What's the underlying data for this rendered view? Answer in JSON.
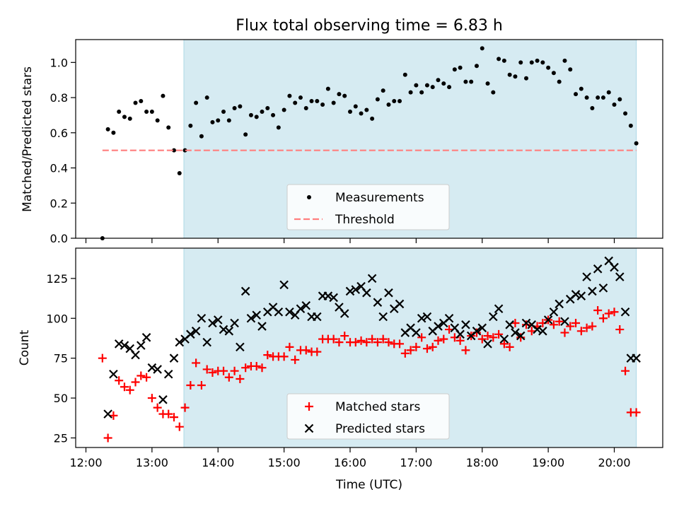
{
  "chart_data": [
    {
      "type": "scatter",
      "title": "Flux total observing time = 6.83 h",
      "xlabel": "",
      "ylabel": "Matched/Predicted stars",
      "ylim": [
        0,
        1.13
      ],
      "yticks": [
        "0.0",
        "0.2",
        "0.4",
        "0.6",
        "0.8",
        "1.0"
      ],
      "shaded_span": [
        "13:29",
        "20:20"
      ],
      "shade_color": "#add8e6",
      "legend": {
        "placement": "bottom-center",
        "entries": [
          "Measurements",
          "Threshold"
        ]
      },
      "series": [
        {
          "name": "Measurements",
          "color": "#000000",
          "marker": "dot",
          "x": [
            "12:15",
            "12:20",
            "12:25",
            "12:30",
            "12:35",
            "12:40",
            "12:45",
            "12:50",
            "12:55",
            "13:00",
            "13:05",
            "13:10",
            "13:15",
            "13:20",
            "13:25",
            "13:30",
            "13:35",
            "13:40",
            "13:45",
            "13:50",
            "13:55",
            "14:00",
            "14:05",
            "14:10",
            "14:15",
            "14:20",
            "14:25",
            "14:30",
            "14:35",
            "14:40",
            "14:45",
            "14:50",
            "14:55",
            "15:00",
            "15:05",
            "15:10",
            "15:15",
            "15:20",
            "15:25",
            "15:30",
            "15:35",
            "15:40",
            "15:45",
            "15:50",
            "15:55",
            "16:00",
            "16:05",
            "16:10",
            "16:15",
            "16:20",
            "16:25",
            "16:30",
            "16:35",
            "16:40",
            "16:45",
            "16:50",
            "16:55",
            "17:00",
            "17:05",
            "17:10",
            "17:15",
            "17:20",
            "17:25",
            "17:30",
            "17:35",
            "17:40",
            "17:45",
            "17:50",
            "17:55",
            "18:00",
            "18:05",
            "18:10",
            "18:15",
            "18:20",
            "18:25",
            "18:30",
            "18:35",
            "18:40",
            "18:45",
            "18:50",
            "18:55",
            "19:00",
            "19:05",
            "19:10",
            "19:15",
            "19:20",
            "19:25",
            "19:30",
            "19:35",
            "19:40",
            "19:45",
            "19:50",
            "19:55",
            "20:00",
            "20:05",
            "20:10",
            "20:15",
            "20:20"
          ],
          "y": [
            0.0,
            0.62,
            0.6,
            0.72,
            0.69,
            0.68,
            0.77,
            0.78,
            0.72,
            0.72,
            0.67,
            0.81,
            0.63,
            0.5,
            0.37,
            0.5,
            0.64,
            0.77,
            0.58,
            0.8,
            0.66,
            0.67,
            0.72,
            0.67,
            0.74,
            0.75,
            0.59,
            0.7,
            0.69,
            0.72,
            0.74,
            0.7,
            0.63,
            0.73,
            0.81,
            0.77,
            0.8,
            0.74,
            0.78,
            0.78,
            0.76,
            0.85,
            0.77,
            0.82,
            0.81,
            0.72,
            0.75,
            0.71,
            0.73,
            0.68,
            0.79,
            0.84,
            0.76,
            0.78,
            0.78,
            0.93,
            0.83,
            0.87,
            0.83,
            0.87,
            0.86,
            0.9,
            0.88,
            0.86,
            0.96,
            0.97,
            0.89,
            0.89,
            0.98,
            1.08,
            0.88,
            0.83,
            1.02,
            1.01,
            0.93,
            0.92,
            1.0,
            0.91,
            1.0,
            1.01,
            1.0,
            0.97,
            0.94,
            0.89,
            1.01,
            0.96,
            0.82,
            0.85,
            0.8,
            0.74,
            0.8,
            0.8,
            0.83,
            0.76,
            0.79,
            0.71,
            0.64,
            0.54
          ]
        },
        {
          "name": "Threshold",
          "color": "#ff7f7f",
          "style": "dashed",
          "x": [
            "12:15",
            "20:20"
          ],
          "y": [
            0.5,
            0.5
          ]
        }
      ]
    },
    {
      "type": "scatter",
      "title": "",
      "xlabel": "Time (UTC)",
      "ylabel": "Count",
      "ylim": [
        19,
        144
      ],
      "xticks": [
        "12:00",
        "13:00",
        "14:00",
        "15:00",
        "16:00",
        "17:00",
        "18:00",
        "19:00",
        "20:00"
      ],
      "yticks": [
        "25",
        "50",
        "75",
        "100",
        "125"
      ],
      "shaded_span": [
        "13:29",
        "20:20"
      ],
      "shade_color": "#add8e6",
      "legend": {
        "placement": "bottom-center",
        "entries": [
          "Matched stars",
          "Predicted stars"
        ]
      },
      "series": [
        {
          "name": "Matched stars",
          "color": "#ff0000",
          "marker": "plus",
          "x": [
            "12:15",
            "12:20",
            "12:25",
            "12:30",
            "12:35",
            "12:40",
            "12:45",
            "12:50",
            "12:55",
            "13:00",
            "13:05",
            "13:10",
            "13:15",
            "13:20",
            "13:25",
            "13:30",
            "13:35",
            "13:40",
            "13:45",
            "13:50",
            "13:55",
            "14:00",
            "14:05",
            "14:10",
            "14:15",
            "14:20",
            "14:25",
            "14:30",
            "14:35",
            "14:40",
            "14:45",
            "14:50",
            "14:55",
            "15:00",
            "15:05",
            "15:10",
            "15:15",
            "15:20",
            "15:25",
            "15:30",
            "15:35",
            "15:40",
            "15:45",
            "15:50",
            "15:55",
            "16:00",
            "16:05",
            "16:10",
            "16:15",
            "16:20",
            "16:25",
            "16:30",
            "16:35",
            "16:40",
            "16:45",
            "16:50",
            "16:55",
            "17:00",
            "17:05",
            "17:10",
            "17:15",
            "17:20",
            "17:25",
            "17:30",
            "17:35",
            "17:40",
            "17:45",
            "17:50",
            "17:55",
            "18:00",
            "18:05",
            "18:10",
            "18:15",
            "18:20",
            "18:25",
            "18:30",
            "18:35",
            "18:40",
            "18:45",
            "18:50",
            "18:55",
            "19:00",
            "19:05",
            "19:10",
            "19:15",
            "19:20",
            "19:25",
            "19:30",
            "19:35",
            "19:40",
            "19:45",
            "19:50",
            "19:55",
            "20:00",
            "20:05",
            "20:10",
            "20:15",
            "20:20"
          ],
          "y": [
            75,
            25,
            39,
            61,
            57,
            55,
            60,
            64,
            63,
            50,
            44,
            40,
            40,
            38,
            32,
            44,
            58,
            72,
            58,
            68,
            66,
            67,
            67,
            63,
            67,
            62,
            69,
            70,
            70,
            69,
            77,
            76,
            76,
            76,
            82,
            74,
            80,
            80,
            79,
            79,
            87,
            87,
            87,
            85,
            89,
            85,
            85,
            86,
            85,
            87,
            85,
            87,
            85,
            84,
            84,
            78,
            80,
            82,
            88,
            81,
            82,
            86,
            87,
            93,
            88,
            86,
            80,
            89,
            91,
            87,
            89,
            88,
            90,
            84,
            82,
            97,
            88,
            96,
            92,
            95,
            97,
            99,
            96,
            98,
            91,
            95,
            97,
            92,
            94,
            95,
            105,
            100,
            103,
            104,
            93,
            67,
            41,
            41
          ]
        },
        {
          "name": "Predicted stars",
          "color": "#000000",
          "marker": "x",
          "x": [
            "12:20",
            "12:25",
            "12:30",
            "12:35",
            "12:40",
            "12:45",
            "12:50",
            "12:55",
            "13:00",
            "13:05",
            "13:10",
            "13:15",
            "13:20",
            "13:25",
            "13:30",
            "13:35",
            "13:40",
            "13:45",
            "13:50",
            "13:55",
            "14:00",
            "14:05",
            "14:10",
            "14:15",
            "14:20",
            "14:25",
            "14:30",
            "14:35",
            "14:40",
            "14:45",
            "14:50",
            "14:55",
            "15:00",
            "15:05",
            "15:10",
            "15:15",
            "15:20",
            "15:25",
            "15:30",
            "15:35",
            "15:40",
            "15:45",
            "15:50",
            "15:55",
            "16:00",
            "16:05",
            "16:10",
            "16:15",
            "16:20",
            "16:25",
            "16:30",
            "16:35",
            "16:40",
            "16:45",
            "16:50",
            "16:55",
            "17:00",
            "17:05",
            "17:10",
            "17:15",
            "17:20",
            "17:25",
            "17:30",
            "17:35",
            "17:40",
            "17:45",
            "17:50",
            "17:55",
            "18:00",
            "18:05",
            "18:10",
            "18:15",
            "18:20",
            "18:25",
            "18:30",
            "18:35",
            "18:40",
            "18:45",
            "18:50",
            "18:55",
            "19:00",
            "19:05",
            "19:10",
            "19:15",
            "19:20",
            "19:25",
            "19:30",
            "19:35",
            "19:40",
            "19:45",
            "19:50",
            "19:55",
            "20:00",
            "20:05",
            "20:10",
            "20:15",
            "20:20"
          ],
          "y": [
            40,
            65,
            84,
            83,
            81,
            77,
            83,
            88,
            69,
            68,
            49,
            65,
            75,
            85,
            87,
            90,
            92,
            100,
            85,
            97,
            99,
            93,
            92,
            97,
            82,
            117,
            100,
            102,
            95,
            104,
            107,
            104,
            121,
            104,
            102,
            106,
            108,
            101,
            101,
            114,
            114,
            113,
            107,
            103,
            117,
            118,
            120,
            116,
            125,
            110,
            101,
            116,
            106,
            109,
            91,
            94,
            91,
            100,
            101,
            92,
            95,
            97,
            100,
            94,
            90,
            96,
            89,
            92,
            94,
            84,
            101,
            106,
            87,
            96,
            91,
            89,
            97,
            96,
            93,
            92,
            99,
            104,
            109,
            98,
            112,
            115,
            114,
            126,
            117,
            131,
            119,
            136,
            132,
            126,
            104,
            75,
            75
          ]
        }
      ]
    }
  ]
}
